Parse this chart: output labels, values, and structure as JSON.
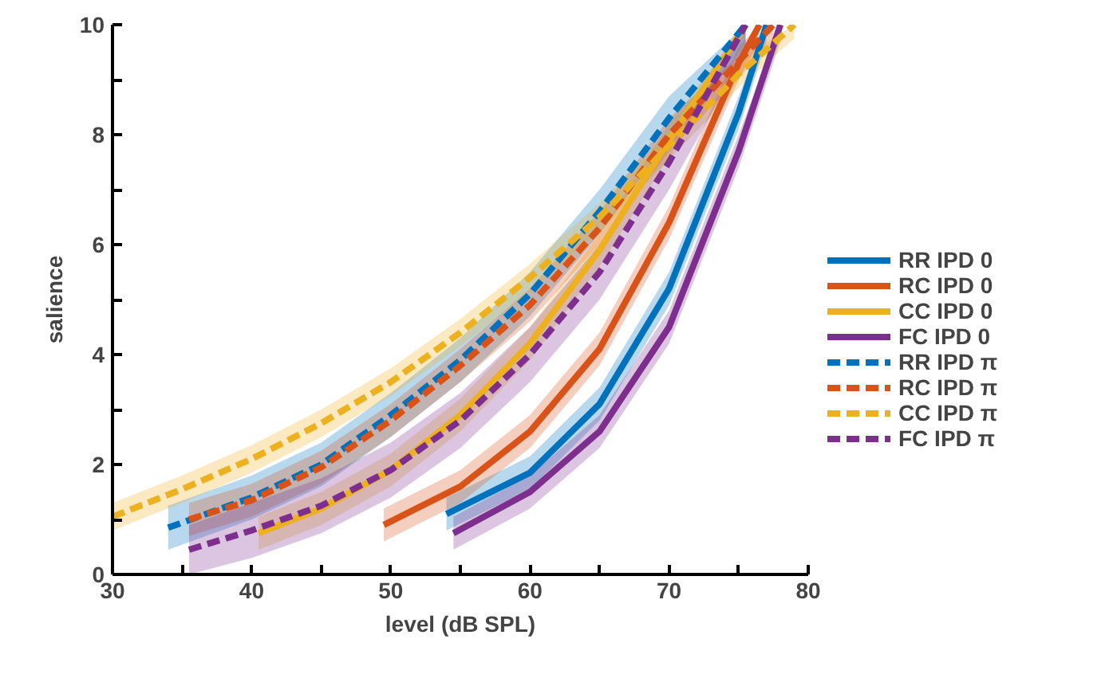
{
  "chart_data": {
    "type": "line",
    "xlabel": "level (dB SPL)",
    "ylabel": "salience",
    "xlim": [
      30,
      80
    ],
    "ylim": [
      0,
      10
    ],
    "xticks": [
      30,
      {
        "value": 35,
        "label": null
      },
      40,
      {
        "value": 45,
        "label": null
      },
      50,
      {
        "value": 55,
        "label": null
      },
      60,
      {
        "value": 65,
        "label": null
      },
      70,
      {
        "value": 75,
        "label": null
      },
      80
    ],
    "yticks": [
      0,
      {
        "value": 1,
        "label": null
      },
      2,
      {
        "value": 3,
        "label": null
      },
      4,
      {
        "value": 5,
        "label": null
      },
      6,
      {
        "value": 7,
        "label": null
      },
      8,
      {
        "value": 9,
        "label": null
      },
      10
    ],
    "grid": false,
    "legend": "right",
    "marker": "none",
    "series": [
      {
        "name": "RR IPD 0",
        "color": "#0072bd",
        "line_style": "solid",
        "x": [
          54,
          60,
          65,
          70,
          75,
          77
        ],
        "values": [
          1.1,
          1.85,
          3.1,
          5.2,
          8.4,
          10
        ],
        "lower": [
          0.8,
          1.55,
          2.8,
          4.9,
          8.1,
          9.7
        ],
        "upper": [
          1.4,
          2.15,
          3.4,
          5.5,
          8.7,
          10
        ]
      },
      {
        "name": "RC IPD 0",
        "color": "#d95319",
        "line_style": "solid",
        "x": [
          49.5,
          55,
          60,
          65,
          70,
          75,
          76.5
        ],
        "values": [
          0.9,
          1.6,
          2.6,
          4.1,
          6.4,
          9.3,
          10
        ],
        "lower": [
          0.6,
          1.3,
          2.3,
          3.8,
          6.1,
          9.0,
          9.7
        ],
        "upper": [
          1.2,
          1.9,
          2.9,
          4.4,
          6.7,
          9.6,
          10
        ]
      },
      {
        "name": "CC IPD 0",
        "color": "#edb120",
        "line_style": "solid",
        "x": [
          40.5,
          45,
          50,
          55,
          60,
          65,
          70,
          75.5
        ],
        "values": [
          0.75,
          1.2,
          1.9,
          2.9,
          4.2,
          5.9,
          7.9,
          10
        ],
        "lower": [
          0.45,
          0.9,
          1.6,
          2.6,
          3.9,
          5.6,
          7.6,
          9.7
        ],
        "upper": [
          1.05,
          1.5,
          2.2,
          3.2,
          4.5,
          6.2,
          8.2,
          10
        ]
      },
      {
        "name": "FC IPD 0",
        "color": "#7e2f8e",
        "line_style": "solid",
        "x": [
          54.5,
          60,
          65,
          70,
          75,
          78
        ],
        "values": [
          0.75,
          1.5,
          2.6,
          4.5,
          7.7,
          10
        ],
        "lower": [
          0.45,
          1.2,
          2.3,
          4.2,
          7.4,
          9.7
        ],
        "upper": [
          1.05,
          1.8,
          2.9,
          4.8,
          8.0,
          10
        ]
      },
      {
        "name": "RR IPD π",
        "color": "#0072bd",
        "line_style": "dotted",
        "x": [
          34,
          40,
          45,
          50,
          55,
          60,
          65,
          70,
          75.5
        ],
        "values": [
          0.85,
          1.4,
          2.0,
          2.9,
          3.9,
          5.1,
          6.6,
          8.3,
          10
        ],
        "lower": [
          0.45,
          1.0,
          1.6,
          2.5,
          3.5,
          4.7,
          6.2,
          7.9,
          9.6
        ],
        "upper": [
          1.25,
          1.8,
          2.4,
          3.3,
          4.3,
          5.5,
          7.0,
          8.7,
          10
        ]
      },
      {
        "name": "RC IPD π",
        "color": "#d95319",
        "line_style": "dotted",
        "x": [
          35.5,
          40,
          45,
          50,
          55,
          60,
          65,
          70,
          77.5
        ],
        "values": [
          1.0,
          1.35,
          1.95,
          2.8,
          3.8,
          4.9,
          6.3,
          8.0,
          10
        ],
        "lower": [
          0.7,
          1.05,
          1.65,
          2.5,
          3.5,
          4.6,
          6.0,
          7.7,
          9.7
        ],
        "upper": [
          1.3,
          1.65,
          2.25,
          3.1,
          4.1,
          5.2,
          6.6,
          8.3,
          10
        ]
      },
      {
        "name": "CC IPD π",
        "color": "#edb120",
        "line_style": "dotted",
        "x": [
          30,
          35,
          40,
          45,
          50,
          55,
          60,
          65,
          70,
          75,
          79
        ],
        "values": [
          1.05,
          1.55,
          2.1,
          2.75,
          3.5,
          4.4,
          5.4,
          6.5,
          7.8,
          9.1,
          10
        ],
        "lower": [
          0.8,
          1.3,
          1.85,
          2.5,
          3.25,
          4.15,
          5.15,
          6.25,
          7.55,
          8.85,
          9.75
        ],
        "upper": [
          1.3,
          1.8,
          2.35,
          3.0,
          3.75,
          4.65,
          5.65,
          6.75,
          8.05,
          9.35,
          10
        ]
      },
      {
        "name": "FC IPD π",
        "color": "#7e2f8e",
        "line_style": "dotted",
        "x": [
          35.5,
          40,
          45,
          50,
          55,
          60,
          65,
          70,
          75.5
        ],
        "values": [
          0.45,
          0.8,
          1.25,
          1.9,
          2.8,
          4.0,
          5.5,
          7.5,
          10
        ],
        "lower": [
          0,
          0.3,
          0.75,
          1.4,
          2.3,
          3.5,
          5.0,
          7.0,
          9.5
        ],
        "upper": [
          0.9,
          1.3,
          1.75,
          2.4,
          3.3,
          4.5,
          6.0,
          8.0,
          10
        ]
      }
    ]
  }
}
